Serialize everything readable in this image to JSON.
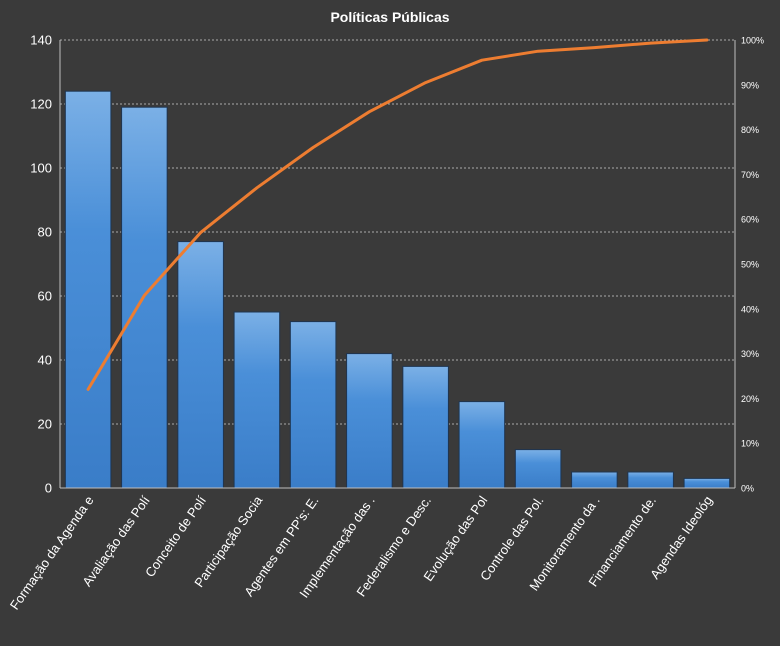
{
  "chart_data": {
    "type": "bar",
    "title": "Políticas  Públicas",
    "categories": [
      "Formação da Agenda e",
      "Avaliação das Polí",
      "Conceito de Polí",
      "Participação Socia",
      "Agentes em PP's: E.",
      "Implementação das .",
      "Federalismo e Desc.",
      "Evolução das Pol",
      "Controle das Pol.",
      "Monitoramento da .",
      "Financiamento de.",
      "Agendas Ideológ"
    ],
    "series": [
      {
        "type": "bar",
        "values": [
          124,
          119,
          77,
          55,
          52,
          42,
          38,
          27,
          12,
          5,
          5,
          3
        ]
      },
      {
        "type": "line",
        "axis": "right",
        "values": [
          22,
          43,
          57,
          67,
          76,
          84,
          90.5,
          95.5,
          97.5,
          98.3,
          99.3,
          100
        ]
      }
    ],
    "ylim": [
      0,
      140
    ],
    "yticks": [
      "0",
      "20",
      "40",
      "60",
      "80",
      "100",
      "120",
      "140"
    ],
    "y2lim": [
      0,
      100
    ],
    "y2ticks": [
      "0%",
      "10%",
      "20%",
      "30%",
      "40%",
      "50%",
      "60%",
      "70%",
      "80%",
      "90%",
      "100%"
    ],
    "grid": true,
    "legend": "none",
    "colors": {
      "background": "#3a3a3a",
      "bar": "#4a8fd8",
      "bar_edge": "#1f3550",
      "line": "#ed7d31",
      "text": "#ffffff",
      "grid": "#cfcfcf"
    }
  }
}
